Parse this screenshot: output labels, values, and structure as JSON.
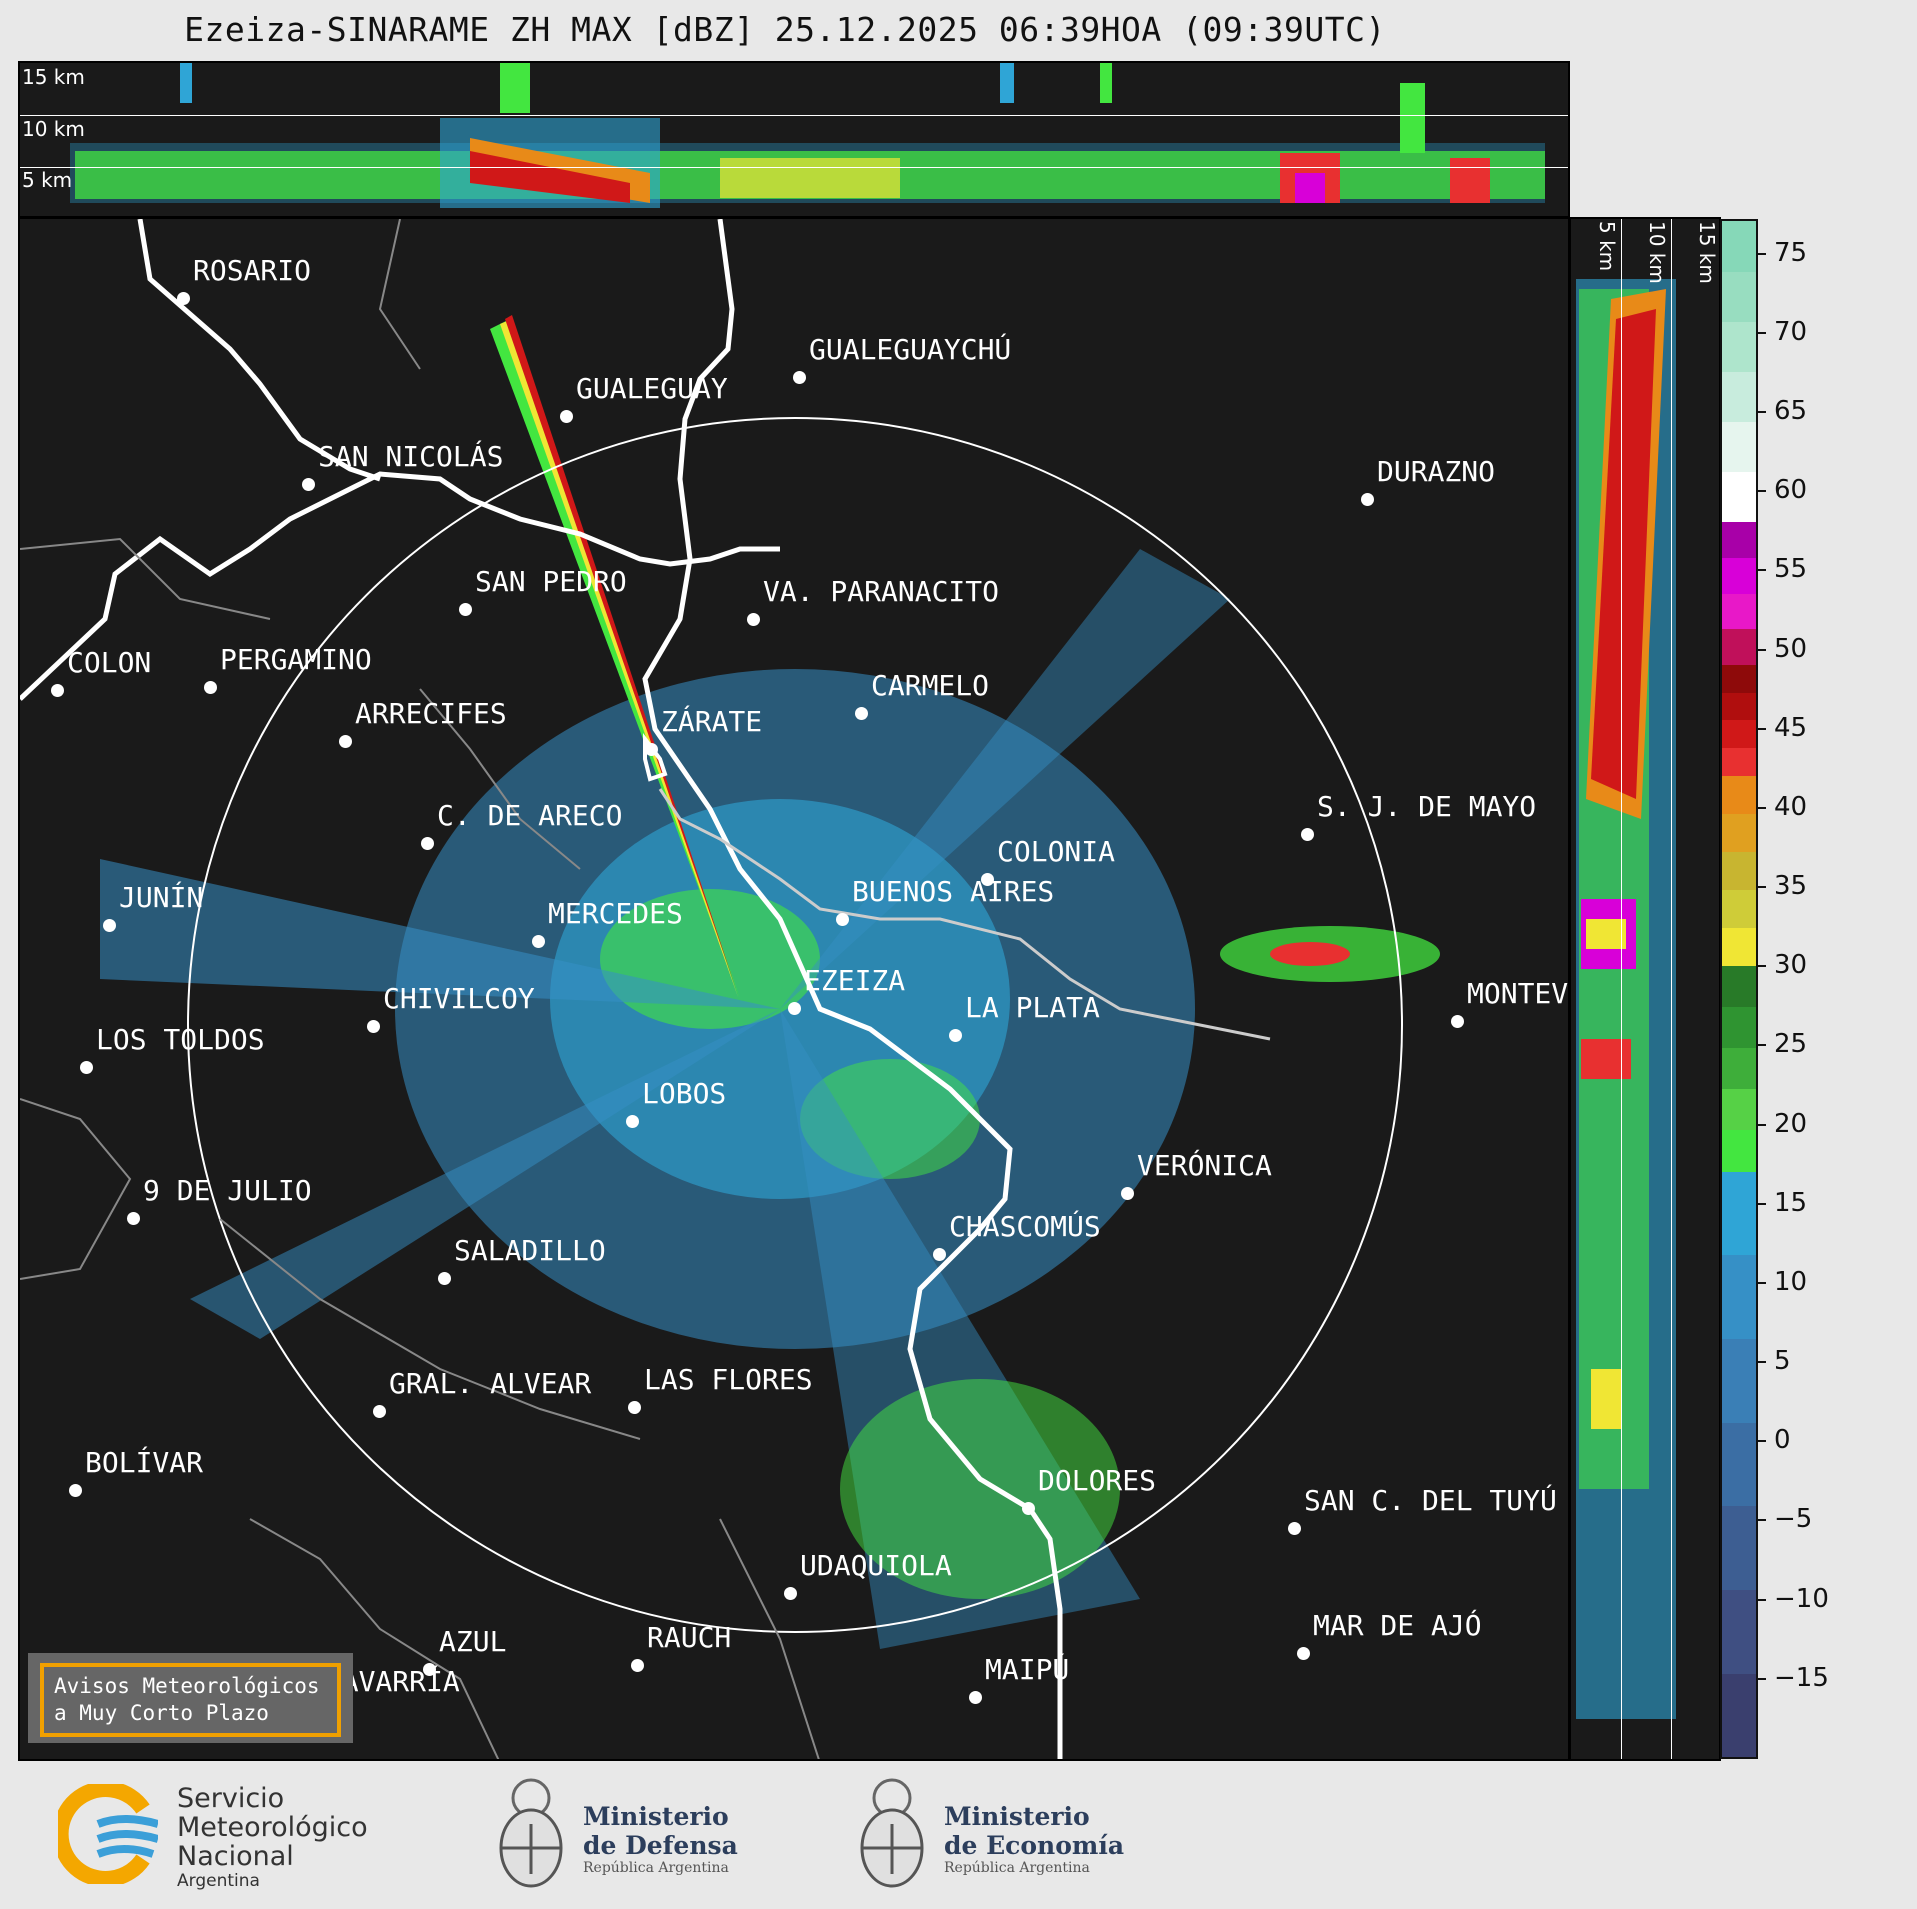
{
  "title": "Ezeiza-SINARAME ZH MAX [dBZ] 25.12.2025 06:39HOA (09:39UTC)",
  "top_profile": {
    "altitude_labels": [
      "15 km",
      "10 km",
      "5 km"
    ]
  },
  "side_profile": {
    "altitude_labels": [
      "5 km",
      "10 km",
      "15 km"
    ]
  },
  "colorbar": {
    "unit": "dBZ",
    "ticks": [
      "75",
      "70",
      "65",
      "60",
      "55",
      "50",
      "45",
      "40",
      "35",
      "30",
      "25",
      "20",
      "15",
      "10",
      "5",
      "0",
      "−5",
      "−10",
      "−15"
    ],
    "range": [
      -20,
      77
    ],
    "bands": [
      {
        "from": -20,
        "to": 17,
        "colors": [
          "#3a3f6e",
          "#3f4f82",
          "#3d5e92",
          "#3b6ea4",
          "#3a7fb6",
          "#3690c6",
          "#2fa5d6"
        ]
      },
      {
        "from": 17,
        "to": 30,
        "colors": [
          "#43e640",
          "#56d146",
          "#3eae3a",
          "#2f9431",
          "#287a28"
        ]
      },
      {
        "from": 30,
        "to": 42,
        "colors": [
          "#f0e634",
          "#cfcc38",
          "#c8b530",
          "#e0a020",
          "#e88a18"
        ]
      },
      {
        "from": 42,
        "to": 49,
        "colors": [
          "#e83030",
          "#d01818",
          "#b00e0e",
          "#8e0a0a"
        ]
      },
      {
        "from": 49,
        "to": 58,
        "colors": [
          "#c0105a",
          "#e818c8",
          "#d800d8",
          "#a800a8"
        ]
      },
      {
        "from": 58,
        "to": 77,
        "colors": [
          "#ffffff",
          "#e6f5ee",
          "#c8ecdd",
          "#aee5cc",
          "#98ddc0",
          "#86d8b8"
        ]
      }
    ]
  },
  "cities": [
    {
      "name": "ROSARIO"
    },
    {
      "name": "GUALEGUAYCHÚ"
    },
    {
      "name": "GUALEGUAY"
    },
    {
      "name": "SAN NICOLÁS"
    },
    {
      "name": "DURAZNO"
    },
    {
      "name": "SAN PEDRO"
    },
    {
      "name": "VA. PARANACITO"
    },
    {
      "name": "COLON"
    },
    {
      "name": "PERGAMINO"
    },
    {
      "name": "CARMELO"
    },
    {
      "name": "ARRECIFES"
    },
    {
      "name": "ZÁRATE"
    },
    {
      "name": "C. DE ARECO"
    },
    {
      "name": "S. J. DE MAYO"
    },
    {
      "name": "COLONIA"
    },
    {
      "name": "JUNÍN"
    },
    {
      "name": "BUENOS AIRES"
    },
    {
      "name": "MERCEDES"
    },
    {
      "name": "EZEIZA"
    },
    {
      "name": "MONTEV"
    },
    {
      "name": "CHIVILCOY"
    },
    {
      "name": "LA PLATA"
    },
    {
      "name": "LOS TOLDOS"
    },
    {
      "name": "LOBOS"
    },
    {
      "name": "VERÓNICA"
    },
    {
      "name": "9 DE JULIO"
    },
    {
      "name": "CHASCOMÚS"
    },
    {
      "name": "SALADILLO"
    },
    {
      "name": "GRAL. ALVEAR"
    },
    {
      "name": "LAS FLORES"
    },
    {
      "name": "BOLÍVAR"
    },
    {
      "name": "DOLORES"
    },
    {
      "name": "SAN C. DEL TUYÚ"
    },
    {
      "name": "UDAQUIOLA"
    },
    {
      "name": "MAR DE AJÓ"
    },
    {
      "name": "RAUCH"
    },
    {
      "name": "AZUL"
    },
    {
      "name": "OLAVARRÍA"
    },
    {
      "name": "MAIPÚ"
    }
  ],
  "warning_box": {
    "line1": "Avisos Meteorológicos",
    "line2": "a Muy Corto Plazo"
  },
  "footer": {
    "smn": {
      "line1": "Servicio",
      "line2": "Meteorológico",
      "line3": "Nacional",
      "line4": "Argentina"
    },
    "defensa": {
      "line1": "Ministerio",
      "line2": "de Defensa",
      "line3": "República Argentina"
    },
    "economia": {
      "line1": "Ministerio",
      "line2": "de Economía",
      "line3": "República Argentina"
    }
  }
}
